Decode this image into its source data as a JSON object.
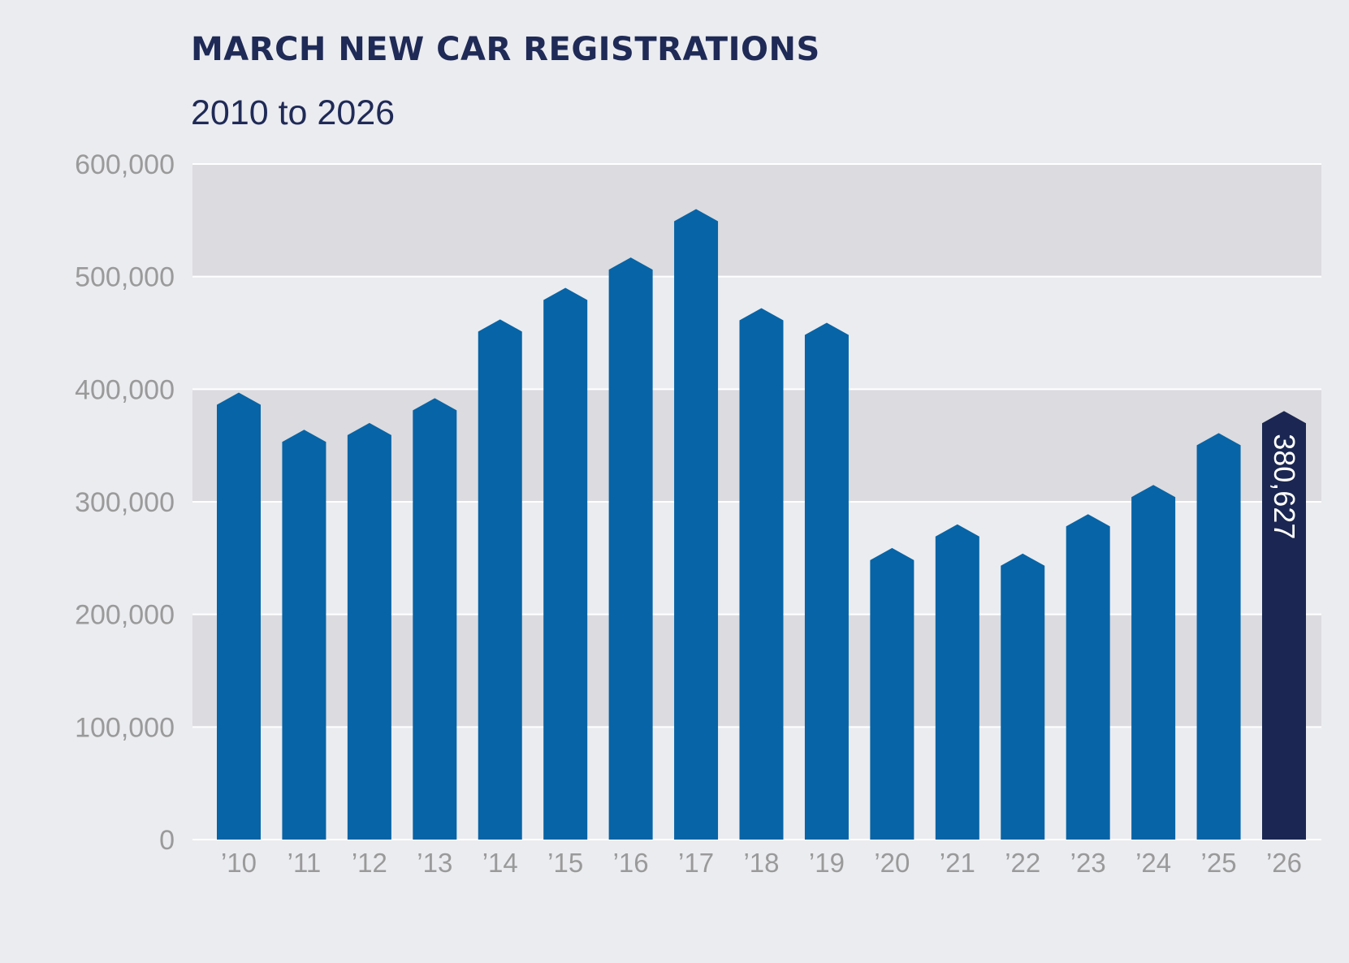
{
  "chart_data": {
    "type": "bar",
    "title": "MARCH NEW CAR REGISTRATIONS",
    "subtitle": "2010 to 2026",
    "xlabel": "",
    "ylabel": "",
    "ylim": [
      0,
      600000
    ],
    "yticks": [
      0,
      100000,
      200000,
      300000,
      400000,
      500000,
      600000
    ],
    "ytick_labels": [
      "0",
      "100,000",
      "200,000",
      "300,000",
      "400,000",
      "500,000",
      "600,000"
    ],
    "categories": [
      "’10",
      "’11",
      "’12",
      "’13",
      "’14",
      "’15",
      "’16",
      "’17",
      "’18",
      "’19",
      "’20",
      "’21",
      "’22",
      "’23",
      "’24",
      "’25",
      "’26"
    ],
    "values": [
      397000,
      364000,
      370000,
      392000,
      462000,
      490000,
      517000,
      560000,
      472000,
      459000,
      259000,
      280000,
      254000,
      289000,
      315000,
      361000,
      380627
    ],
    "highlight_index": 16,
    "highlight_label": "380,627",
    "grid": true,
    "bands": "alternating shaded bands",
    "colors": {
      "bar": "#0764a6",
      "highlight_bar": "#1b2752",
      "band": "#dcdbdf",
      "background": "#ebecf0",
      "gridline": "#ffffff",
      "title": "#1f2a56",
      "tick": "#9a9a9a"
    }
  }
}
